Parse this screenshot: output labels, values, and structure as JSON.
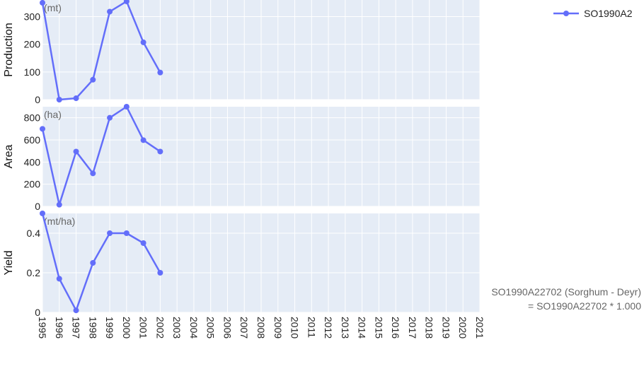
{
  "chart_data": {
    "type": "line",
    "x": [
      1995,
      1996,
      1997,
      1998,
      1999,
      2000,
      2001,
      2002
    ],
    "x_ticks": [
      "1995",
      "1996",
      "1997",
      "1998",
      "1999",
      "2000",
      "2001",
      "2002",
      "2003",
      "2004",
      "2005",
      "2006",
      "2007",
      "2008",
      "2009",
      "2010",
      "2011",
      "2012",
      "2013",
      "2014",
      "2015",
      "2016",
      "2017",
      "2018",
      "2019",
      "2020",
      "2021"
    ],
    "xlim": [
      1995,
      2021
    ],
    "legend": {
      "label": "SO1990A2",
      "position": "top-right"
    },
    "series_color": "#636EFA",
    "background_color": "#E5ECF6",
    "grid": true,
    "panels": [
      {
        "ylabel": "Production",
        "unit": "(mt)",
        "ylim": [
          0,
          360
        ],
        "yticks": [
          "0",
          "100",
          "200",
          "300"
        ],
        "values": [
          350,
          0,
          5,
          72,
          318,
          355,
          207,
          98
        ]
      },
      {
        "ylabel": "Area",
        "unit": "(ha)",
        "ylim": [
          0,
          900
        ],
        "yticks": [
          "0",
          "200",
          "400",
          "600",
          "800"
        ],
        "values": [
          700,
          15,
          495,
          298,
          800,
          900,
          598,
          495
        ]
      },
      {
        "ylabel": "Yield",
        "unit": "(mt/ha)",
        "ylim": [
          0,
          0.5
        ],
        "yticks": [
          "0",
          "0.2",
          "0.4"
        ],
        "values": [
          0.5,
          0.17,
          0.01,
          0.25,
          0.4,
          0.4,
          0.35,
          0.2
        ]
      }
    ],
    "annotation": {
      "line1": "SO1990A22702 (Sorghum - Deyr)",
      "line2": "= SO1990A22702 * 1.000"
    }
  }
}
